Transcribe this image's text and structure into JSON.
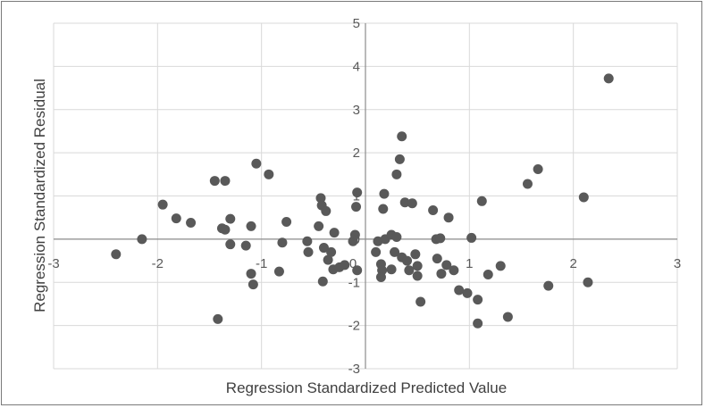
{
  "chart_data": {
    "type": "scatter",
    "title": "",
    "xlabel": "Regression Standardized Predicted Value",
    "ylabel": "Regression Standardized Residual",
    "xlim": [
      -3,
      3
    ],
    "ylim": [
      -3,
      5
    ],
    "x_ticks": [
      "-3",
      "-2",
      "-1",
      "0",
      "1",
      "2",
      "3"
    ],
    "y_ticks": [
      "-3",
      "-2",
      "-1",
      "0",
      "1",
      "2",
      "3",
      "4",
      "5"
    ],
    "grid": true,
    "legend": "none",
    "marker_color": "#595959",
    "points": [
      [
        -2.4,
        -0.35
      ],
      [
        -2.15,
        0.0
      ],
      [
        -1.95,
        0.8
      ],
      [
        -1.82,
        0.48
      ],
      [
        -1.68,
        0.38
      ],
      [
        -1.45,
        1.35
      ],
      [
        -1.35,
        1.35
      ],
      [
        -1.42,
        -1.85
      ],
      [
        -1.38,
        0.25
      ],
      [
        -1.35,
        0.22
      ],
      [
        -1.3,
        0.47
      ],
      [
        -1.3,
        -0.12
      ],
      [
        -1.15,
        -0.15
      ],
      [
        -1.1,
        0.3
      ],
      [
        -1.1,
        -0.8
      ],
      [
        -1.08,
        -1.05
      ],
      [
        -1.05,
        1.75
      ],
      [
        -0.93,
        1.5
      ],
      [
        -0.83,
        -0.75
      ],
      [
        -0.8,
        -0.08
      ],
      [
        -0.76,
        0.4
      ],
      [
        -0.56,
        -0.05
      ],
      [
        -0.55,
        -0.3
      ],
      [
        -0.45,
        0.3
      ],
      [
        -0.43,
        0.95
      ],
      [
        -0.42,
        0.78
      ],
      [
        -0.38,
        0.65
      ],
      [
        -0.4,
        -0.2
      ],
      [
        -0.41,
        -0.98
      ],
      [
        -0.36,
        -0.48
      ],
      [
        -0.33,
        -0.3
      ],
      [
        -0.31,
        -0.7
      ],
      [
        -0.3,
        0.15
      ],
      [
        -0.25,
        -0.65
      ],
      [
        -0.2,
        -0.6
      ],
      [
        -0.12,
        -0.05
      ],
      [
        -0.1,
        0.1
      ],
      [
        -0.09,
        0.75
      ],
      [
        -0.08,
        1.08
      ],
      [
        -0.08,
        -0.72
      ],
      [
        0.1,
        -0.3
      ],
      [
        0.12,
        -0.05
      ],
      [
        0.15,
        -0.58
      ],
      [
        0.16,
        -0.72
      ],
      [
        0.15,
        -0.88
      ],
      [
        0.17,
        0.7
      ],
      [
        0.18,
        1.05
      ],
      [
        0.19,
        0.0
      ],
      [
        0.25,
        -0.7
      ],
      [
        0.25,
        0.1
      ],
      [
        0.28,
        -0.3
      ],
      [
        0.3,
        0.05
      ],
      [
        0.3,
        1.5
      ],
      [
        0.33,
        1.85
      ],
      [
        0.35,
        2.38
      ],
      [
        0.35,
        -0.42
      ],
      [
        0.38,
        0.85
      ],
      [
        0.4,
        -0.5
      ],
      [
        0.42,
        -0.72
      ],
      [
        0.45,
        0.83
      ],
      [
        0.48,
        -0.35
      ],
      [
        0.5,
        -0.62
      ],
      [
        0.5,
        -0.85
      ],
      [
        0.53,
        -1.45
      ],
      [
        0.65,
        0.67
      ],
      [
        0.68,
        0.0
      ],
      [
        0.69,
        -0.45
      ],
      [
        0.72,
        0.02
      ],
      [
        0.73,
        -0.8
      ],
      [
        0.78,
        -0.6
      ],
      [
        0.8,
        0.5
      ],
      [
        0.85,
        -0.72
      ],
      [
        0.9,
        -1.18
      ],
      [
        0.98,
        -1.25
      ],
      [
        1.02,
        0.03
      ],
      [
        1.08,
        -1.95
      ],
      [
        1.08,
        -1.4
      ],
      [
        1.12,
        0.88
      ],
      [
        1.18,
        -0.82
      ],
      [
        1.3,
        -0.62
      ],
      [
        1.37,
        -1.8
      ],
      [
        1.56,
        1.28
      ],
      [
        1.66,
        1.62
      ],
      [
        1.76,
        -1.08
      ],
      [
        2.1,
        0.97
      ],
      [
        2.14,
        -1.0
      ],
      [
        2.34,
        3.72
      ]
    ]
  }
}
